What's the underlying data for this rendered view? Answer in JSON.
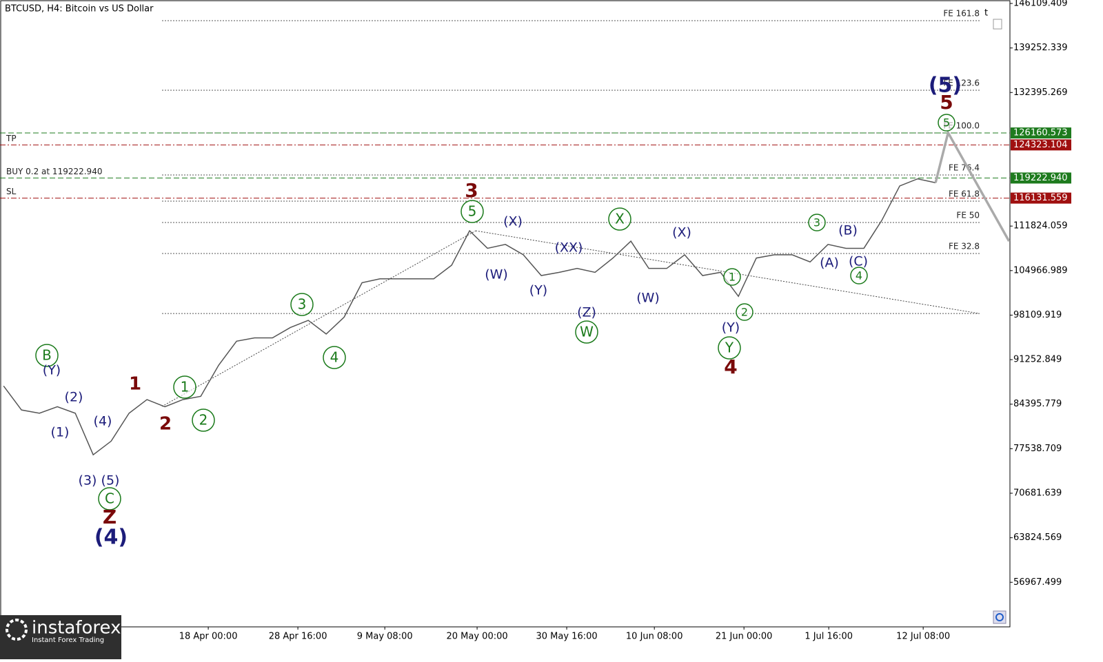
{
  "chart_data": {
    "type": "line",
    "title": "BTCUSD, H4:  Bitcoin vs US Dollar",
    "xlim": [
      -0.2,
      56.15
    ],
    "ylim": [
      50100,
      146640
    ],
    "xticks": [
      {
        "value": 11.42,
        "label": "18 Apr 00:00"
      },
      {
        "value": 16.42,
        "label": "28 Apr 16:00"
      },
      {
        "value": 21.27,
        "label": "9 May 08:00"
      },
      {
        "value": 26.42,
        "label": "20 May 00:00"
      },
      {
        "value": 31.42,
        "label": "30 May 16:00"
      },
      {
        "value": 36.31,
        "label": "10 Jun 08:00"
      },
      {
        "value": 41.31,
        "label": "21 Jun 00:00"
      },
      {
        "value": 46.04,
        "label": "1 Jul 16:00"
      },
      {
        "value": 51.31,
        "label": "12 Jul 08:00"
      }
    ],
    "yticks": [
      146109.409,
      139252.339,
      132395.269,
      111824.059,
      104966.989,
      98109.919,
      91252.849,
      84395.779,
      77538.709,
      70681.639,
      63824.569,
      56967.499
    ],
    "series": [
      {
        "color": "#555555",
        "x": [
          0,
          1,
          2,
          3,
          4,
          5,
          6,
          7,
          8,
          9,
          10,
          11,
          12,
          13,
          14,
          15,
          16,
          17,
          18,
          19,
          20,
          21,
          22,
          23,
          24,
          25,
          26,
          27,
          28,
          29,
          30,
          31,
          32,
          33,
          34,
          35,
          36,
          37,
          38,
          39,
          40,
          41,
          42,
          43,
          44,
          45,
          46,
          47,
          48,
          49,
          50,
          51,
          52
        ],
        "values": [
          87200,
          83500,
          83000,
          84000,
          83000,
          76600,
          78700,
          83000,
          85100,
          84000,
          85100,
          85600,
          90400,
          94100,
          94600,
          94600,
          96200,
          97300,
          95200,
          97800,
          103100,
          103700,
          103700,
          103700,
          103700,
          105800,
          111100,
          108400,
          109000,
          107400,
          104200,
          104700,
          105300,
          104700,
          106900,
          109500,
          105300,
          105300,
          107400,
          104200,
          104700,
          101000,
          106900,
          107400,
          107400,
          106300,
          109000,
          108400,
          108400,
          112700,
          118000,
          119100,
          118500
        ]
      },
      {
        "color": "#aaaaaa",
        "x": [
          52,
          52.7,
          56.1
        ],
        "values": [
          118500,
          126200,
          109500
        ]
      }
    ],
    "fib_levels": [
      {
        "label": "FE 161.8",
        "value": 143456
      },
      {
        "label": "FE 123.6",
        "value": 132740
      },
      {
        "label": "FE 100.0",
        "value": 126160
      },
      {
        "label": "FE 76.4",
        "value": 119690
      },
      {
        "label": "FE 61.8",
        "value": 115658
      },
      {
        "label": "FE 50",
        "value": 112369
      },
      {
        "label": "FE 32.8",
        "value": 107594
      },
      {
        "value": 98363
      }
    ],
    "price_lines": [
      {
        "value": 126160.573,
        "color": "#1e7b1e"
      },
      {
        "value": 124323.104,
        "color": "#a01010",
        "text": "TP"
      },
      {
        "value": 119222.94,
        "tag": "119222.940",
        "color": "#1e7b1e",
        "text": "BUY 0.2 at 119222.940"
      },
      {
        "value": 116131.559,
        "color": "#a01010",
        "text": "SL"
      }
    ],
    "wave_labels": [
      "B",
      "(Y)",
      "(2)",
      "(1)",
      "(4)",
      "(3)",
      "(5)",
      "C",
      "Z",
      "(4)",
      "1",
      "2",
      "1",
      "2",
      "3",
      "4",
      "3",
      "5",
      "(X)",
      "(W)",
      "(Y)",
      "(XX)",
      "(Z)",
      "W",
      "X",
      "(X)",
      "(W)",
      "1",
      "2",
      "(Y)",
      "Y",
      "4",
      "3",
      "(B)",
      "(A)",
      "(C)",
      "4",
      "(5)",
      "5",
      "5"
    ],
    "logo": {
      "name": "instaforex",
      "tagline": "Instant Forex Trading"
    }
  }
}
